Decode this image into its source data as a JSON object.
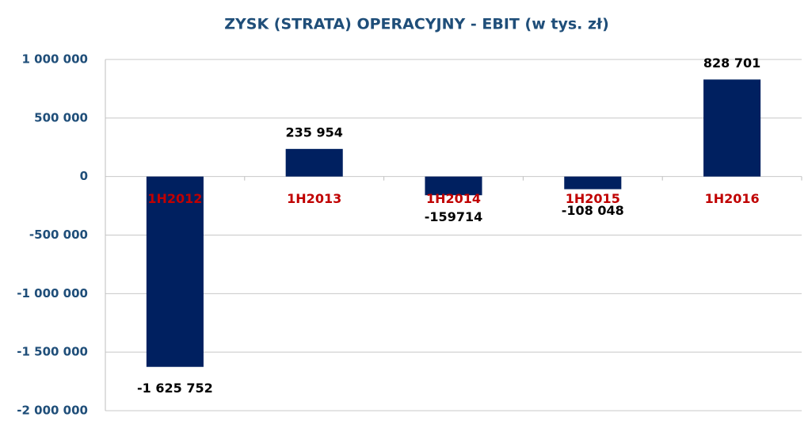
{
  "chart_data": {
    "type": "bar",
    "title": "ZYSK (STRATA) OPERACYJNY - EBIT (w tys. zł)",
    "categories": [
      "1H2012",
      "1H2013",
      "1H2014",
      "1H2015",
      "1H2016"
    ],
    "values": [
      -1625752,
      235954,
      -159714,
      -108048,
      828701
    ],
    "value_labels": [
      "-1 625 752",
      "235 954",
      "-159714",
      "-108 048",
      "828 701"
    ],
    "color": "#002060",
    "ylim": [
      -2000000,
      1000000
    ],
    "yticks": [
      {
        "value": -2000000,
        "label": "-2 000 000"
      },
      {
        "value": -1500000,
        "label": "-1 500 000"
      },
      {
        "value": -1000000,
        "label": "-1 000 000"
      },
      {
        "value": -500000,
        "label": "-500 000"
      },
      0,
      {
        "value": 500000,
        "label": "500 000"
      },
      {
        "value": 1000000,
        "label": "1 000 000"
      }
    ],
    "grid": true
  }
}
